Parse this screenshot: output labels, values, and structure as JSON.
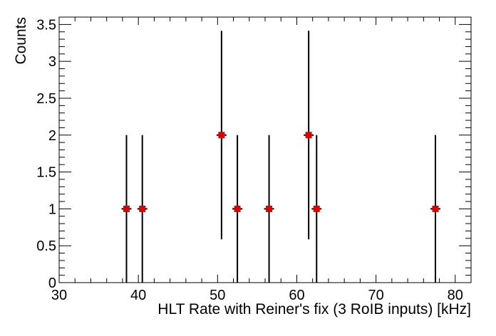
{
  "chart_data": {
    "type": "scatter",
    "title": "",
    "xlabel": "HLT Rate with Reiner's fix (3 RoIB inputs) [kHz]",
    "ylabel": "Counts",
    "xlim": [
      30,
      82
    ],
    "ylim": [
      0,
      3.6
    ],
    "x_ticks": [
      30,
      40,
      50,
      60,
      70,
      80
    ],
    "x_tick_labels": [
      "30",
      "40",
      "50",
      "60",
      "70",
      "80"
    ],
    "y_ticks": [
      0,
      0.5,
      1,
      1.5,
      2,
      2.5,
      3,
      3.5
    ],
    "y_tick_labels": [
      "0",
      "0.5",
      "1",
      "1.5",
      "2",
      "2.5",
      "3",
      "3.5"
    ],
    "grid": false,
    "legend": "none",
    "marker_color": "#dd0000",
    "errorbar_color": "#000000",
    "series": [
      {
        "points": [
          {
            "x": 38.5,
            "y": 1,
            "err_low": 1,
            "err_high": 1
          },
          {
            "x": 40.5,
            "y": 1,
            "err_low": 1,
            "err_high": 1
          },
          {
            "x": 50.5,
            "y": 2,
            "err_low": 1.414,
            "err_high": 1.414
          },
          {
            "x": 52.5,
            "y": 1,
            "err_low": 1,
            "err_high": 1
          },
          {
            "x": 56.5,
            "y": 1,
            "err_low": 1,
            "err_high": 1
          },
          {
            "x": 61.5,
            "y": 2,
            "err_low": 1.414,
            "err_high": 1.414
          },
          {
            "x": 62.5,
            "y": 1,
            "err_low": 1,
            "err_high": 1
          },
          {
            "x": 77.5,
            "y": 1,
            "err_low": 1,
            "err_high": 1
          }
        ]
      }
    ]
  }
}
